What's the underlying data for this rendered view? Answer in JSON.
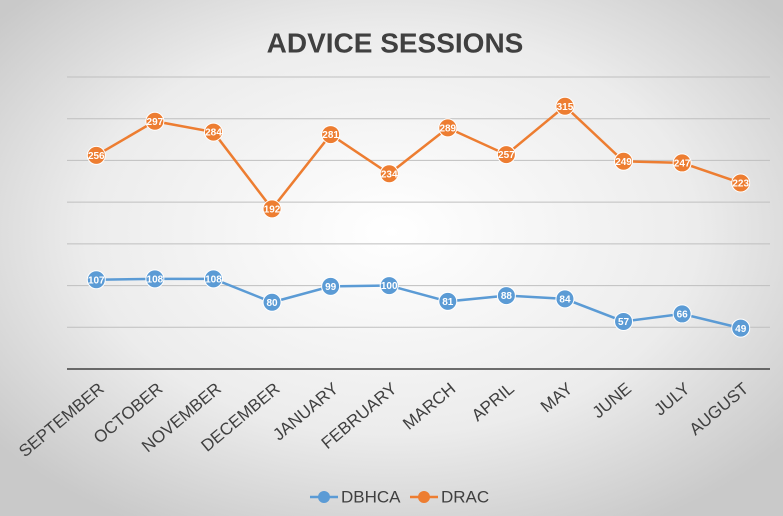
{
  "chart_data": {
    "type": "line",
    "title": "ADVICE SESSIONS",
    "categories": [
      "SEPTEMBER",
      "OCTOBER",
      "NOVEMBER",
      "DECEMBER",
      "JANUARY",
      "FEBRUARY",
      "MARCH",
      "APRIL",
      "MAY",
      "JUNE",
      "JULY",
      "AUGUST"
    ],
    "series": [
      {
        "name": "DBHCA",
        "color": "#5b9bd5",
        "values": [
          107,
          108,
          108,
          80,
          99,
          100,
          81,
          88,
          84,
          57,
          66,
          49
        ]
      },
      {
        "name": "DRAC",
        "color": "#ed7d31",
        "values": [
          256,
          297,
          284,
          192,
          281,
          234,
          289,
          257,
          315,
          249,
          247,
          223
        ]
      }
    ],
    "ylim": [
      0,
      350
    ],
    "yticks": [
      0,
      50,
      100,
      150,
      200,
      250,
      300,
      350
    ],
    "grid": true,
    "legend": "bottom"
  }
}
